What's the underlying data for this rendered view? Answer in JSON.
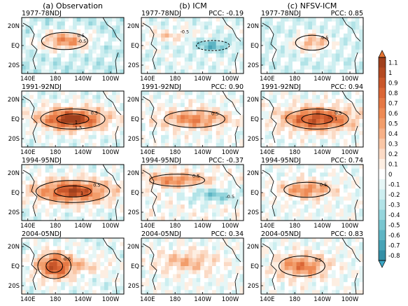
{
  "columns": [
    {
      "title": "(a) Observation"
    },
    {
      "title": "(b) ICM"
    },
    {
      "title": "(c) NFSV-ICM"
    }
  ],
  "chart_data": {
    "type": "heatmap",
    "colorbar": {
      "ticks": [
        "1.1",
        "1",
        "0.9",
        "0.8",
        "0.7",
        "0.6",
        "0.5",
        "0.4",
        "0.3",
        "0.2",
        "0.1",
        "0",
        "-0.1",
        "-0.2",
        "-0.3",
        "-0.4",
        "-0.5",
        "-0.6",
        "-0.7",
        "-0.8"
      ],
      "colors": [
        "#a0401d",
        "#b44a22",
        "#c9572b",
        "#da6636",
        "#e57845",
        "#ee8a55",
        "#f29d6b",
        "#f6b087",
        "#f9c6a6",
        "#fbdac5",
        "#fdeee2",
        "#ffffff",
        "#e6f6f6",
        "#cdeef0",
        "#b2e3e7",
        "#95d5dc",
        "#79c6d0",
        "#5eb5c4",
        "#47a3b6",
        "#348fa6"
      ]
    },
    "lon_ticks": [
      "140E",
      "180",
      "140W",
      "100W"
    ],
    "lat_ticks": [
      "20N",
      "EQ",
      "20S"
    ],
    "panels": [
      {
        "row": 0,
        "col": 0,
        "label": "1977-78NDJ",
        "pcc": "",
        "contours": [
          "0.5",
          "-0.5"
        ],
        "bg": -0.2,
        "blobs": [
          [
            0.42,
            0.42,
            0.25,
            0.17,
            0.75
          ]
        ]
      },
      {
        "row": 0,
        "col": 1,
        "label": "1977-78NDJ",
        "pcc": "PCC: -0.19",
        "contours": [
          "-0.5"
        ],
        "bg": -0.1,
        "blobs": [
          [
            0.27,
            0.32,
            0.22,
            0.1,
            0.3
          ],
          [
            0.7,
            0.5,
            0.18,
            0.1,
            -0.5
          ]
        ]
      },
      {
        "row": 0,
        "col": 2,
        "label": "1977-78NDJ",
        "pcc": "PCC: 0.85",
        "contours": [
          "0.5"
        ],
        "bg": -0.15,
        "blobs": [
          [
            0.5,
            0.45,
            0.18,
            0.15,
            0.55
          ]
        ]
      },
      {
        "row": 1,
        "col": 0,
        "label": "1991-92NDJ",
        "pcc": "",
        "contours": [
          "0.5",
          "1",
          "1.5"
        ],
        "bg": -0.1,
        "blobs": [
          [
            0.5,
            0.5,
            0.35,
            0.2,
            1.0
          ],
          [
            0.45,
            0.52,
            0.14,
            0.09,
            0.4
          ]
        ]
      },
      {
        "row": 1,
        "col": 1,
        "label": "1991-92NDJ",
        "pcc": "PCC: 0.90",
        "contours": [
          "0.5"
        ],
        "bg": -0.05,
        "blobs": [
          [
            0.52,
            0.5,
            0.33,
            0.17,
            0.65
          ]
        ]
      },
      {
        "row": 1,
        "col": 2,
        "label": "1991-92NDJ",
        "pcc": "PCC: 0.94",
        "contours": [
          "0.5",
          "1"
        ],
        "bg": -0.05,
        "blobs": [
          [
            0.55,
            0.5,
            0.34,
            0.2,
            1.0
          ]
        ]
      },
      {
        "row": 2,
        "col": 0,
        "label": "1994-95NDJ",
        "pcc": "",
        "contours": [
          "0.5",
          "1"
        ],
        "bg": -0.1,
        "blobs": [
          [
            0.5,
            0.48,
            0.4,
            0.22,
            0.9
          ],
          [
            0.5,
            0.48,
            0.15,
            0.1,
            0.3
          ]
        ]
      },
      {
        "row": 2,
        "col": 1,
        "label": "1994-95NDJ",
        "pcc": "PCC: -0.37",
        "contours": [
          "0.5",
          "-0.5"
        ],
        "bg": 0.0,
        "blobs": [
          [
            0.35,
            0.28,
            0.3,
            0.12,
            0.6
          ],
          [
            0.7,
            0.55,
            0.25,
            0.13,
            -0.45
          ]
        ]
      },
      {
        "row": 2,
        "col": 2,
        "label": "1994-95NDJ",
        "pcc": "PCC: 0.74",
        "contours": [
          "0.5"
        ],
        "bg": -0.05,
        "blobs": [
          [
            0.45,
            0.45,
            0.25,
            0.15,
            0.65
          ]
        ]
      },
      {
        "row": 3,
        "col": 0,
        "label": "2004-05NDJ",
        "pcc": "",
        "contours": [
          "0.5"
        ],
        "bg": -0.1,
        "blobs": [
          [
            0.32,
            0.5,
            0.18,
            0.25,
            0.9
          ],
          [
            0.62,
            0.5,
            0.3,
            0.15,
            0.3
          ]
        ]
      },
      {
        "row": 3,
        "col": 1,
        "label": "2004-05NDJ",
        "pcc": "PCC: 0.34",
        "contours": [],
        "bg": -0.05,
        "blobs": [
          [
            0.45,
            0.42,
            0.3,
            0.2,
            0.4
          ]
        ]
      },
      {
        "row": 3,
        "col": 2,
        "label": "2004-05NDJ",
        "pcc": "PCC: 0.83",
        "contours": [
          "0.5"
        ],
        "bg": -0.05,
        "blobs": [
          [
            0.4,
            0.5,
            0.25,
            0.2,
            0.7
          ]
        ]
      }
    ]
  }
}
